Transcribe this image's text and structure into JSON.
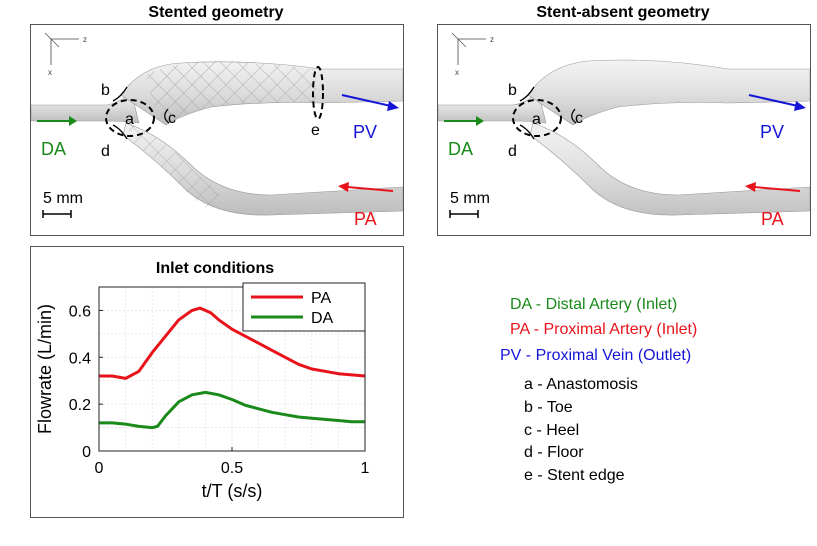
{
  "panels": {
    "stented": {
      "title": "Stented geometry",
      "labels": {
        "a": "a",
        "b": "b",
        "c": "c",
        "d": "d",
        "e": "e"
      },
      "vessels": {
        "da": "DA",
        "pv": "PV",
        "pa": "PA"
      },
      "axes": {
        "z": "z",
        "x": "x"
      },
      "scale_bar": "5 mm"
    },
    "stent_absent": {
      "title": "Stent-absent geometry",
      "labels": {
        "a": "a",
        "b": "b",
        "c": "c",
        "d": "d"
      },
      "vessels": {
        "da": "DA",
        "pv": "PV",
        "pa": "PA"
      },
      "axes": {
        "z": "z",
        "x": "x"
      },
      "scale_bar": "5 mm"
    }
  },
  "colors": {
    "da": "#1a8a1a",
    "pa": "#e8131a",
    "pv": "#1414d8"
  },
  "legend": {
    "da": "DA - Distal Artery (Inlet)",
    "pa": "PA - Proximal Artery (Inlet)",
    "pv": "PV - Proximal Vein (Outlet)"
  },
  "definitions": [
    "a - Anastomosis",
    "b - Toe",
    "c - Heel",
    "d - Floor",
    "e - Stent edge"
  ],
  "chart_data": {
    "type": "line",
    "title": "Inlet conditions",
    "xlabel": "t/T (s/s)",
    "ylabel": "Flowrate (L/min)",
    "xlim": [
      0,
      1
    ],
    "ylim": [
      0,
      0.7
    ],
    "xticks": [
      0,
      0.5,
      1
    ],
    "xtick_labels": [
      "0",
      "0.5",
      "1"
    ],
    "yticks": [
      0,
      0.2,
      0.4,
      0.6
    ],
    "ytick_labels": [
      "0",
      "0.2",
      "0.4",
      "0.6"
    ],
    "grid": true,
    "legend_position": "top-right",
    "series": [
      {
        "name": "PA",
        "color": "#e8131a",
        "x": [
          0,
          0.05,
          0.1,
          0.15,
          0.2,
          0.25,
          0.3,
          0.35,
          0.38,
          0.42,
          0.45,
          0.5,
          0.55,
          0.6,
          0.65,
          0.7,
          0.75,
          0.8,
          0.85,
          0.9,
          0.95,
          1.0
        ],
        "y": [
          0.32,
          0.32,
          0.31,
          0.34,
          0.42,
          0.49,
          0.56,
          0.6,
          0.61,
          0.59,
          0.56,
          0.52,
          0.49,
          0.46,
          0.43,
          0.4,
          0.37,
          0.35,
          0.34,
          0.33,
          0.325,
          0.32
        ]
      },
      {
        "name": "DA",
        "color": "#1a8a1a",
        "x": [
          0,
          0.05,
          0.1,
          0.15,
          0.2,
          0.22,
          0.25,
          0.3,
          0.35,
          0.4,
          0.45,
          0.5,
          0.55,
          0.6,
          0.65,
          0.7,
          0.75,
          0.8,
          0.85,
          0.9,
          0.95,
          1.0
        ],
        "y": [
          0.12,
          0.12,
          0.115,
          0.105,
          0.1,
          0.105,
          0.15,
          0.21,
          0.24,
          0.25,
          0.24,
          0.22,
          0.195,
          0.18,
          0.165,
          0.155,
          0.145,
          0.14,
          0.135,
          0.13,
          0.125,
          0.125
        ]
      }
    ]
  }
}
